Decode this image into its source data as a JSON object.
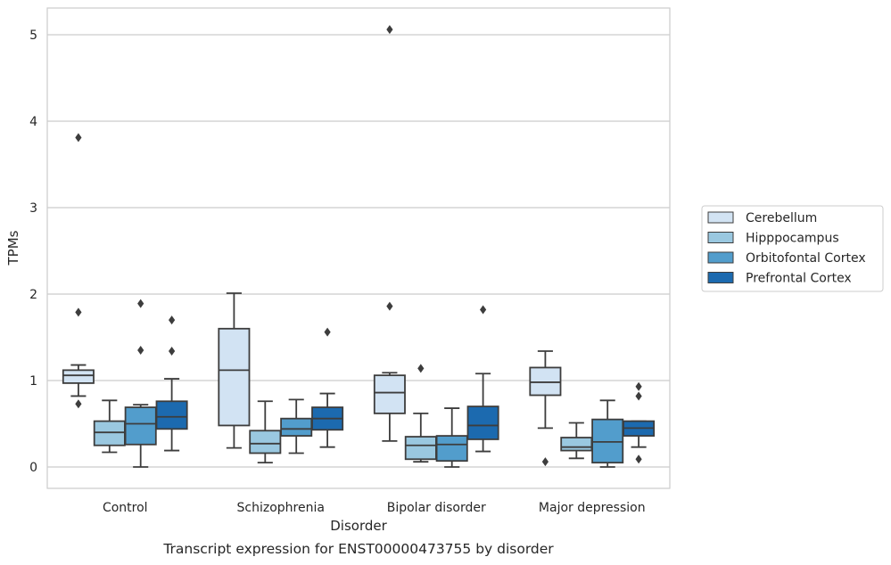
{
  "chart_data": {
    "type": "box",
    "xlabel": "Disorder",
    "ylabel": "TPMs",
    "caption": "Transcript expression for ENST00000473755 by disorder",
    "ylim": [
      -0.25,
      5.3
    ],
    "yticks": [
      "0",
      "1",
      "2",
      "3",
      "4",
      "5"
    ],
    "grid": "horizontal",
    "legend_placement": "right",
    "categories": [
      "Control",
      "Schizophrenia",
      "Bipolar disorder",
      "Major depression"
    ],
    "series": [
      {
        "name": "Cerebellum",
        "color": "#d2e3f3",
        "boxes": [
          {
            "whislo": 0.82,
            "q1": 0.97,
            "med": 1.06,
            "q3": 1.12,
            "whishi": 1.18,
            "fliers": [
              3.81,
              1.79,
              0.73
            ]
          },
          {
            "whislo": 0.22,
            "q1": 0.48,
            "med": 1.12,
            "q3": 1.6,
            "whishi": 2.01,
            "fliers": []
          },
          {
            "whislo": 0.3,
            "q1": 0.62,
            "med": 0.86,
            "q3": 1.06,
            "whishi": 1.09,
            "fliers": [
              5.06,
              1.86
            ]
          },
          {
            "whislo": 0.45,
            "q1": 0.83,
            "med": 0.98,
            "q3": 1.15,
            "whishi": 1.34,
            "fliers": [
              0.06
            ]
          }
        ]
      },
      {
        "name": "Hipppocampus",
        "color": "#9ac8e0",
        "boxes": [
          {
            "whislo": 0.17,
            "q1": 0.25,
            "med": 0.4,
            "q3": 0.53,
            "whishi": 0.77,
            "fliers": []
          },
          {
            "whislo": 0.05,
            "q1": 0.16,
            "med": 0.27,
            "q3": 0.42,
            "whishi": 0.76,
            "fliers": []
          },
          {
            "whislo": 0.06,
            "q1": 0.09,
            "med": 0.25,
            "q3": 0.35,
            "whishi": 0.62,
            "fliers": [
              1.14
            ]
          },
          {
            "whislo": 0.1,
            "q1": 0.19,
            "med": 0.23,
            "q3": 0.34,
            "whishi": 0.51,
            "fliers": []
          }
        ]
      },
      {
        "name": "Orbitofontal Cortex",
        "color": "#529dcc",
        "boxes": [
          {
            "whislo": 0.0,
            "q1": 0.26,
            "med": 0.5,
            "q3": 0.69,
            "whishi": 0.72,
            "fliers": [
              1.89,
              1.35
            ]
          },
          {
            "whislo": 0.16,
            "q1": 0.36,
            "med": 0.44,
            "q3": 0.56,
            "whishi": 0.78,
            "fliers": []
          },
          {
            "whislo": 0.0,
            "q1": 0.07,
            "med": 0.26,
            "q3": 0.36,
            "whishi": 0.68,
            "fliers": []
          },
          {
            "whislo": 0.0,
            "q1": 0.05,
            "med": 0.29,
            "q3": 0.55,
            "whishi": 0.77,
            "fliers": []
          }
        ]
      },
      {
        "name": "Prefrontal Cortex",
        "color": "#1c6aaf",
        "boxes": [
          {
            "whislo": 0.19,
            "q1": 0.44,
            "med": 0.58,
            "q3": 0.76,
            "whishi": 1.02,
            "fliers": [
              1.7,
              1.34
            ]
          },
          {
            "whislo": 0.23,
            "q1": 0.43,
            "med": 0.56,
            "q3": 0.69,
            "whishi": 0.85,
            "fliers": [
              1.56
            ]
          },
          {
            "whislo": 0.18,
            "q1": 0.32,
            "med": 0.48,
            "q3": 0.7,
            "whishi": 1.08,
            "fliers": [
              1.82
            ]
          },
          {
            "whislo": 0.23,
            "q1": 0.36,
            "med": 0.45,
            "q3": 0.53,
            "whishi": 0.53,
            "fliers": [
              0.93,
              0.82,
              0.09
            ]
          }
        ]
      }
    ]
  }
}
